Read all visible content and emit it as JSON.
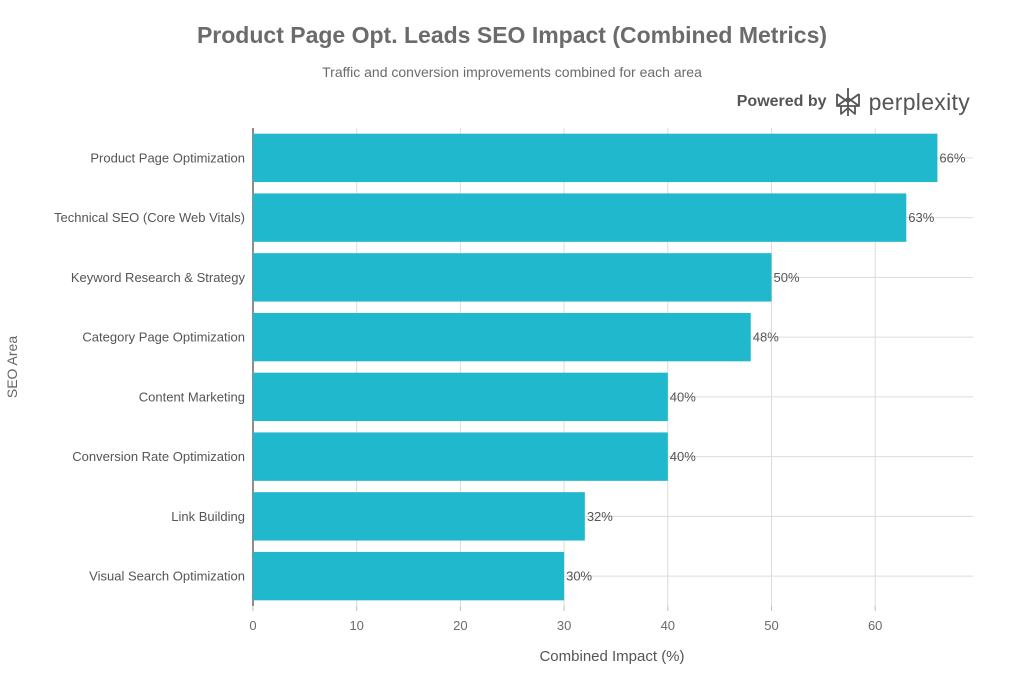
{
  "header": {
    "title": "Product Page Opt. Leads SEO Impact (Combined Metrics)",
    "subtitle": "Traffic and conversion improvements combined for each area"
  },
  "brand": {
    "powered_label": "Powered by",
    "name": "perplexity",
    "icon": "perplexity-logo-icon"
  },
  "chart_data": {
    "type": "bar",
    "orientation": "horizontal",
    "title": "Product Page Opt. Leads SEO Impact (Combined Metrics)",
    "subtitle": "Traffic and conversion improvements combined for each area",
    "xlabel": "Combined Impact (%)",
    "ylabel": "SEO Area",
    "xlim": [
      0,
      70
    ],
    "xticks": [
      0,
      10,
      20,
      30,
      40,
      50,
      60
    ],
    "grid": true,
    "bar_color": "#20b8cd",
    "categories": [
      "Product Page Optimization",
      "Technical SEO (Core Web Vitals)",
      "Keyword Research & Strategy",
      "Category Page Optimization",
      "Content Marketing",
      "Conversion Rate Optimization",
      "Link Building",
      "Visual Search Optimization"
    ],
    "values": [
      66,
      63,
      50,
      48,
      40,
      40,
      32,
      30
    ],
    "data_labels": [
      "66%",
      "63%",
      "50%",
      "48%",
      "40%",
      "40%",
      "32%",
      "30%"
    ]
  }
}
